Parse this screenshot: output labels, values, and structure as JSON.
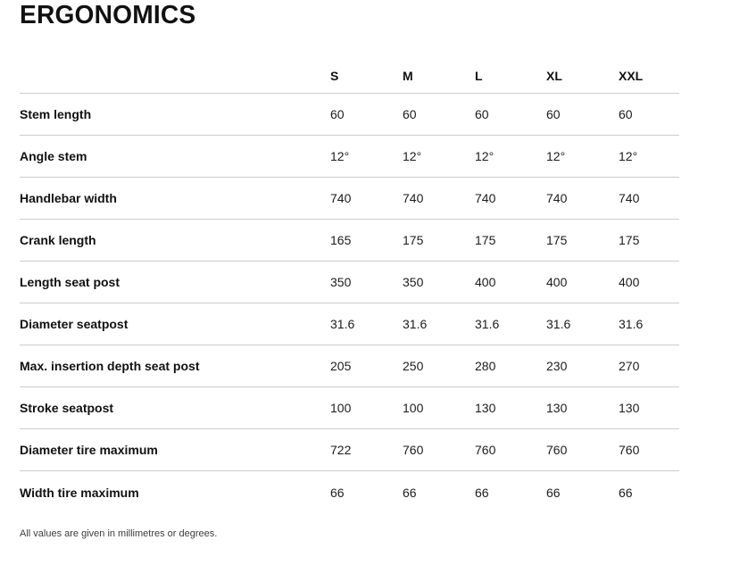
{
  "page": {
    "title": "ERGONOMICS",
    "footnote": "All values are given in millimetres or degrees."
  },
  "table": {
    "columns": [
      "S",
      "M",
      "L",
      "XL",
      "XXL"
    ],
    "rows": [
      {
        "label": "Stem length",
        "values": [
          "60",
          "60",
          "60",
          "60",
          "60"
        ]
      },
      {
        "label": "Angle stem",
        "values": [
          "12°",
          "12°",
          "12°",
          "12°",
          "12°"
        ]
      },
      {
        "label": "Handlebar width",
        "values": [
          "740",
          "740",
          "740",
          "740",
          "740"
        ]
      },
      {
        "label": "Crank length",
        "values": [
          "165",
          "175",
          "175",
          "175",
          "175"
        ]
      },
      {
        "label": "Length seat post",
        "values": [
          "350",
          "350",
          "400",
          "400",
          "400"
        ]
      },
      {
        "label": "Diameter seatpost",
        "values": [
          "31.6",
          "31.6",
          "31.6",
          "31.6",
          "31.6"
        ]
      },
      {
        "label": "Max. insertion depth seat post",
        "values": [
          "205",
          "250",
          "280",
          "230",
          "270"
        ]
      },
      {
        "label": "Stroke seatpost",
        "values": [
          "100",
          "100",
          "130",
          "130",
          "130"
        ]
      },
      {
        "label": "Diameter tire maximum",
        "values": [
          "722",
          "760",
          "760",
          "760",
          "760"
        ]
      },
      {
        "label": "Width tire maximum",
        "values": [
          "66",
          "66",
          "66",
          "66",
          "66"
        ]
      }
    ]
  },
  "colors": {
    "text": "#111111",
    "value_text": "#1c1c1c",
    "row_border": "#cccccc",
    "footnote_text": "#3c3c3c",
    "background": "#ffffff"
  }
}
